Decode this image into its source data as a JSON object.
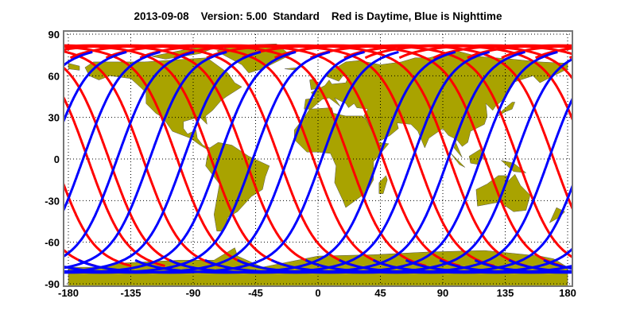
{
  "title": "2013-09-08    Version: 5.00  Standard    Red is Daytime, Blue is Nighttime",
  "map": {
    "projection": "equirectangular",
    "lon_range": [
      -180,
      180
    ],
    "lat_range": [
      -90,
      90
    ],
    "x_ticks": [
      "-180",
      "-135",
      "-90",
      "-45",
      "0",
      "45",
      "90",
      "135",
      "180"
    ],
    "y_ticks": [
      "90",
      "60",
      "30",
      "0",
      "-30",
      "-60",
      "-90"
    ],
    "grid": "dotted",
    "colors": {
      "land": "#a9a300",
      "ocean": "#ffffff",
      "daytime": "#ff0000",
      "nighttime": "#0000ff"
    },
    "tracks": {
      "nighttime_equator_crossings_lon": [
        -169.4,
        -144.9,
        -121.4,
        -96.9,
        -71.6,
        -47.0,
        -22.0,
        2.6,
        43.5,
        68.1,
        93.8,
        117.2,
        141.8,
        166.4
      ],
      "daytime_equator_crossings_lon": [
        -165.9,
        -150.7,
        -126.1,
        -101.5,
        -77.0,
        -52.4,
        -27.9,
        -3.3,
        22.5,
        47.0,
        71.6,
        95.0,
        120.7,
        144.1,
        169.9
      ]
    }
  }
}
